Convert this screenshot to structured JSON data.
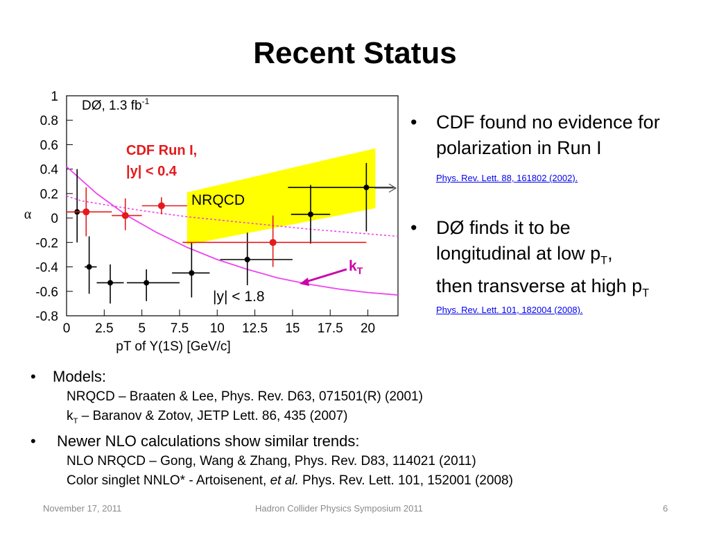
{
  "title": "Recent Status",
  "chart_data": {
    "type": "scatter",
    "xlabel": "pT of Υ(1S) [GeV/c]",
    "ylabel": "α",
    "xlim": [
      0,
      22
    ],
    "ylim": [
      -0.8,
      1
    ],
    "x_ticks": [
      "0",
      "2.5",
      "5",
      "7.5",
      "10",
      "12.5",
      "15",
      "17.5",
      "20"
    ],
    "y_ticks": [
      "1",
      "0.8",
      "0.6",
      "0.4",
      "0.2",
      "0",
      "-0.2",
      "-0.4",
      "-0.6",
      "-0.8"
    ],
    "annotations": {
      "d0": "DØ, 1.3 fb",
      "d0_sup": "-1",
      "cdf_line1": "CDF Run I,",
      "cdf_line2": "|y| < 0.4",
      "nrqcd": "NRQCD",
      "kt": "k",
      "kt_sub": "T",
      "y_range": "|y| < 1.8"
    },
    "series": [
      {
        "color": "#000000",
        "points": [
          {
            "x": 0.7,
            "y": 0.05,
            "xerr": [
              0.7,
              0.8
            ],
            "yerr": [
              0.25,
              0.35
            ]
          },
          {
            "x": 1.5,
            "y": -0.4,
            "xerr": [
              0.3,
              0.5
            ],
            "yerr": [
              0.22,
              0.25
            ]
          },
          {
            "x": 2.9,
            "y": -0.53,
            "xerr": [
              0.9,
              0.9
            ],
            "yerr": [
              0.17,
              0.15
            ]
          },
          {
            "x": 5.3,
            "y": -0.53,
            "xerr": [
              1.3,
              2.2
            ],
            "yerr": [
              0.15,
              0.11
            ]
          },
          {
            "x": 8.3,
            "y": -0.45,
            "xerr": [
              1.3,
              1.2
            ],
            "yerr": [
              0.2,
              0.25
            ]
          },
          {
            "x": 12.0,
            "y": -0.34,
            "xerr": [
              1.8,
              3.0
            ],
            "yerr": [
              0.21,
              0.22
            ]
          },
          {
            "x": 16.2,
            "y": 0.03,
            "xerr": [
              1.3,
              1.3
            ],
            "yerr": [
              0.24,
              0.24
            ]
          },
          {
            "x": 19.9,
            "y": 0.25,
            "xerr": [
              5.2,
              1.8
            ],
            "yerr": [
              0.36,
              0.2
            ]
          }
        ]
      },
      {
        "color": "#e41a1c",
        "points": [
          {
            "x": 1.3,
            "y": 0.05,
            "xerr": [
              1.3,
              1.7
            ],
            "yerr": [
              0.2,
              0.2
            ]
          },
          {
            "x": 3.9,
            "y": 0.02,
            "xerr": [
              0.9,
              1.1
            ],
            "yerr": [
              0.12,
              0.14
            ]
          },
          {
            "x": 6.3,
            "y": 0.1,
            "xerr": [
              1.3,
              1.7
            ],
            "yerr": [
              0.07,
              0.07
            ]
          },
          {
            "x": 13.7,
            "y": -0.2,
            "xerr": [
              6.0,
              6.2
            ],
            "yerr": [
              0.2,
              0.22
            ]
          }
        ]
      }
    ],
    "nrqcd_band": {
      "color": "#ffff00",
      "upper": [
        [
          8,
          0.21
        ],
        [
          20.5,
          0.57
        ]
      ],
      "lower": [
        [
          8,
          -0.22
        ],
        [
          20.5,
          0.08
        ]
      ]
    },
    "kt_curve": {
      "color": "#ee44ee",
      "x": [
        0,
        2,
        4,
        6,
        8,
        10,
        12,
        14,
        16,
        18,
        20,
        22
      ],
      "y": [
        0.42,
        0.2,
        0.02,
        -0.12,
        -0.24,
        -0.34,
        -0.42,
        -0.49,
        -0.54,
        -0.58,
        -0.61,
        -0.63
      ]
    },
    "dashed_curve": {
      "color": "#ee44ee",
      "x": [
        0,
        1,
        2,
        3,
        5,
        8,
        12,
        16,
        20,
        22
      ],
      "y": [
        0.18,
        0.14,
        0.12,
        0.1,
        0.06,
        0.01,
        -0.04,
        -0.09,
        -0.13,
        -0.15
      ]
    }
  },
  "bullets": [
    {
      "text": "CDF found no evidence for polarization in Run I",
      "ref": "Phys. Rev. Lett. 88, 161802 (2002)."
    },
    {
      "line1": "DØ finds it to be",
      "line2": "longitudinal at low p",
      "line2_sub": "T",
      "line2_end": ",",
      "line3": "then transverse at high p",
      "line3_sub": "T",
      "ref": "Phys. Rev. Lett. 101, 182004 (2008)."
    }
  ],
  "models": {
    "heading": "Models:",
    "nrqcd_ref": "NRQCD – Braaten & Lee, Phys. Rev. D63, 071501(R) (2001)",
    "kt_prefix": "k",
    "kt_sub": "T",
    "kt_ref": " – Baranov & Zotov, JETP Lett. 86, 435 (2007)"
  },
  "nlo": {
    "heading": "Newer NLO calculations show similar trends:",
    "nlo_ref": "NLO NRQCD – Gong, Wang & Zhang, Phys. Rev. D83, 114021 (2011)",
    "cs_prefix": "Color singlet NNLO* - Artoisenent, ",
    "cs_etal": "et al.",
    "cs_suffix": " Phys. Rev. Lett. 101, 152001 (2008)"
  },
  "footer": {
    "date": "November 17, 2011",
    "event": "Hadron Collider Physics Symposium  2011",
    "page": "6"
  }
}
